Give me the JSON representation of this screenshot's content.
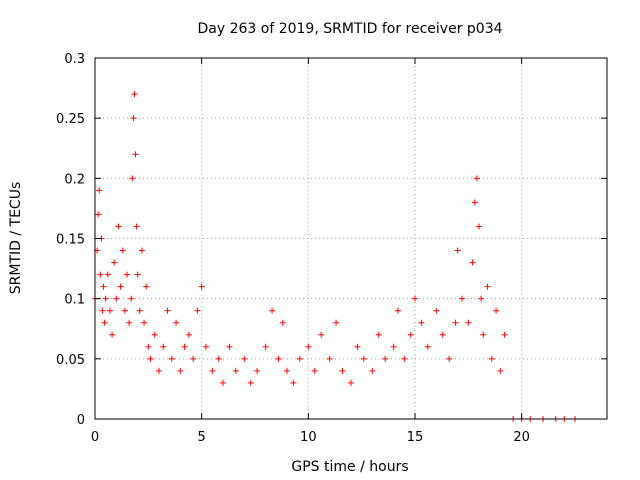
{
  "chart_data": {
    "type": "scatter",
    "title": "Day 263 of 2019, SRMTID for receiver p034",
    "xlabel": "GPS time / hours",
    "ylabel": "SRMTID / TECUs",
    "xlim": [
      0,
      24
    ],
    "ylim": [
      0,
      0.3
    ],
    "x_ticks": [
      "0",
      "5",
      "10",
      "15",
      "20"
    ],
    "y_ticks": [
      "0",
      "0.05",
      "0.1",
      "0.15",
      "0.2",
      "0.25",
      "0.3"
    ],
    "grid": true,
    "marker": "+",
    "marker_color": "#ff0000",
    "series": [
      {
        "name": "SRMTID",
        "x": [
          0.0,
          0.1,
          0.15,
          0.2,
          0.25,
          0.3,
          0.35,
          0.4,
          0.45,
          0.5,
          0.6,
          0.7,
          0.8,
          0.9,
          1.0,
          1.1,
          1.2,
          1.3,
          1.4,
          1.5,
          1.6,
          1.7,
          1.75,
          1.8,
          1.85,
          1.9,
          1.95,
          2.0,
          2.1,
          2.2,
          2.3,
          2.4,
          2.5,
          2.6,
          2.8,
          3.0,
          3.2,
          3.4,
          3.6,
          3.8,
          4.0,
          4.2,
          4.4,
          4.6,
          4.8,
          5.0,
          5.2,
          5.5,
          5.8,
          6.0,
          6.3,
          6.6,
          7.0,
          7.3,
          7.6,
          8.0,
          8.3,
          8.6,
          8.8,
          9.0,
          9.3,
          9.6,
          10.0,
          10.3,
          10.6,
          11.0,
          11.3,
          11.6,
          12.0,
          12.3,
          12.6,
          13.0,
          13.3,
          13.6,
          14.0,
          14.2,
          14.5,
          14.8,
          15.0,
          15.3,
          15.6,
          16.0,
          16.3,
          16.6,
          16.9,
          17.0,
          17.2,
          17.5,
          17.7,
          17.8,
          17.9,
          18.0,
          18.1,
          18.2,
          18.4,
          18.6,
          18.8,
          19.0,
          19.2,
          19.6,
          20.0,
          20.4,
          21.0,
          21.6,
          22.0,
          22.5
        ],
        "y": [
          0.1,
          0.14,
          0.17,
          0.19,
          0.12,
          0.15,
          0.09,
          0.11,
          0.08,
          0.1,
          0.12,
          0.09,
          0.07,
          0.13,
          0.1,
          0.16,
          0.11,
          0.14,
          0.09,
          0.12,
          0.08,
          0.1,
          0.2,
          0.25,
          0.27,
          0.22,
          0.16,
          0.12,
          0.09,
          0.14,
          0.08,
          0.11,
          0.06,
          0.05,
          0.07,
          0.04,
          0.06,
          0.09,
          0.05,
          0.08,
          0.04,
          0.06,
          0.07,
          0.05,
          0.09,
          0.11,
          0.06,
          0.04,
          0.05,
          0.03,
          0.06,
          0.04,
          0.05,
          0.03,
          0.04,
          0.06,
          0.09,
          0.05,
          0.08,
          0.04,
          0.03,
          0.05,
          0.06,
          0.04,
          0.07,
          0.05,
          0.08,
          0.04,
          0.03,
          0.06,
          0.05,
          0.04,
          0.07,
          0.05,
          0.06,
          0.09,
          0.05,
          0.07,
          0.1,
          0.08,
          0.06,
          0.09,
          0.07,
          0.05,
          0.08,
          0.14,
          0.1,
          0.08,
          0.13,
          0.18,
          0.2,
          0.16,
          0.1,
          0.07,
          0.11,
          0.05,
          0.09,
          0.04,
          0.07,
          0.0,
          0.0,
          0.0,
          0.0,
          0.0,
          0.0,
          0.0
        ]
      }
    ]
  }
}
